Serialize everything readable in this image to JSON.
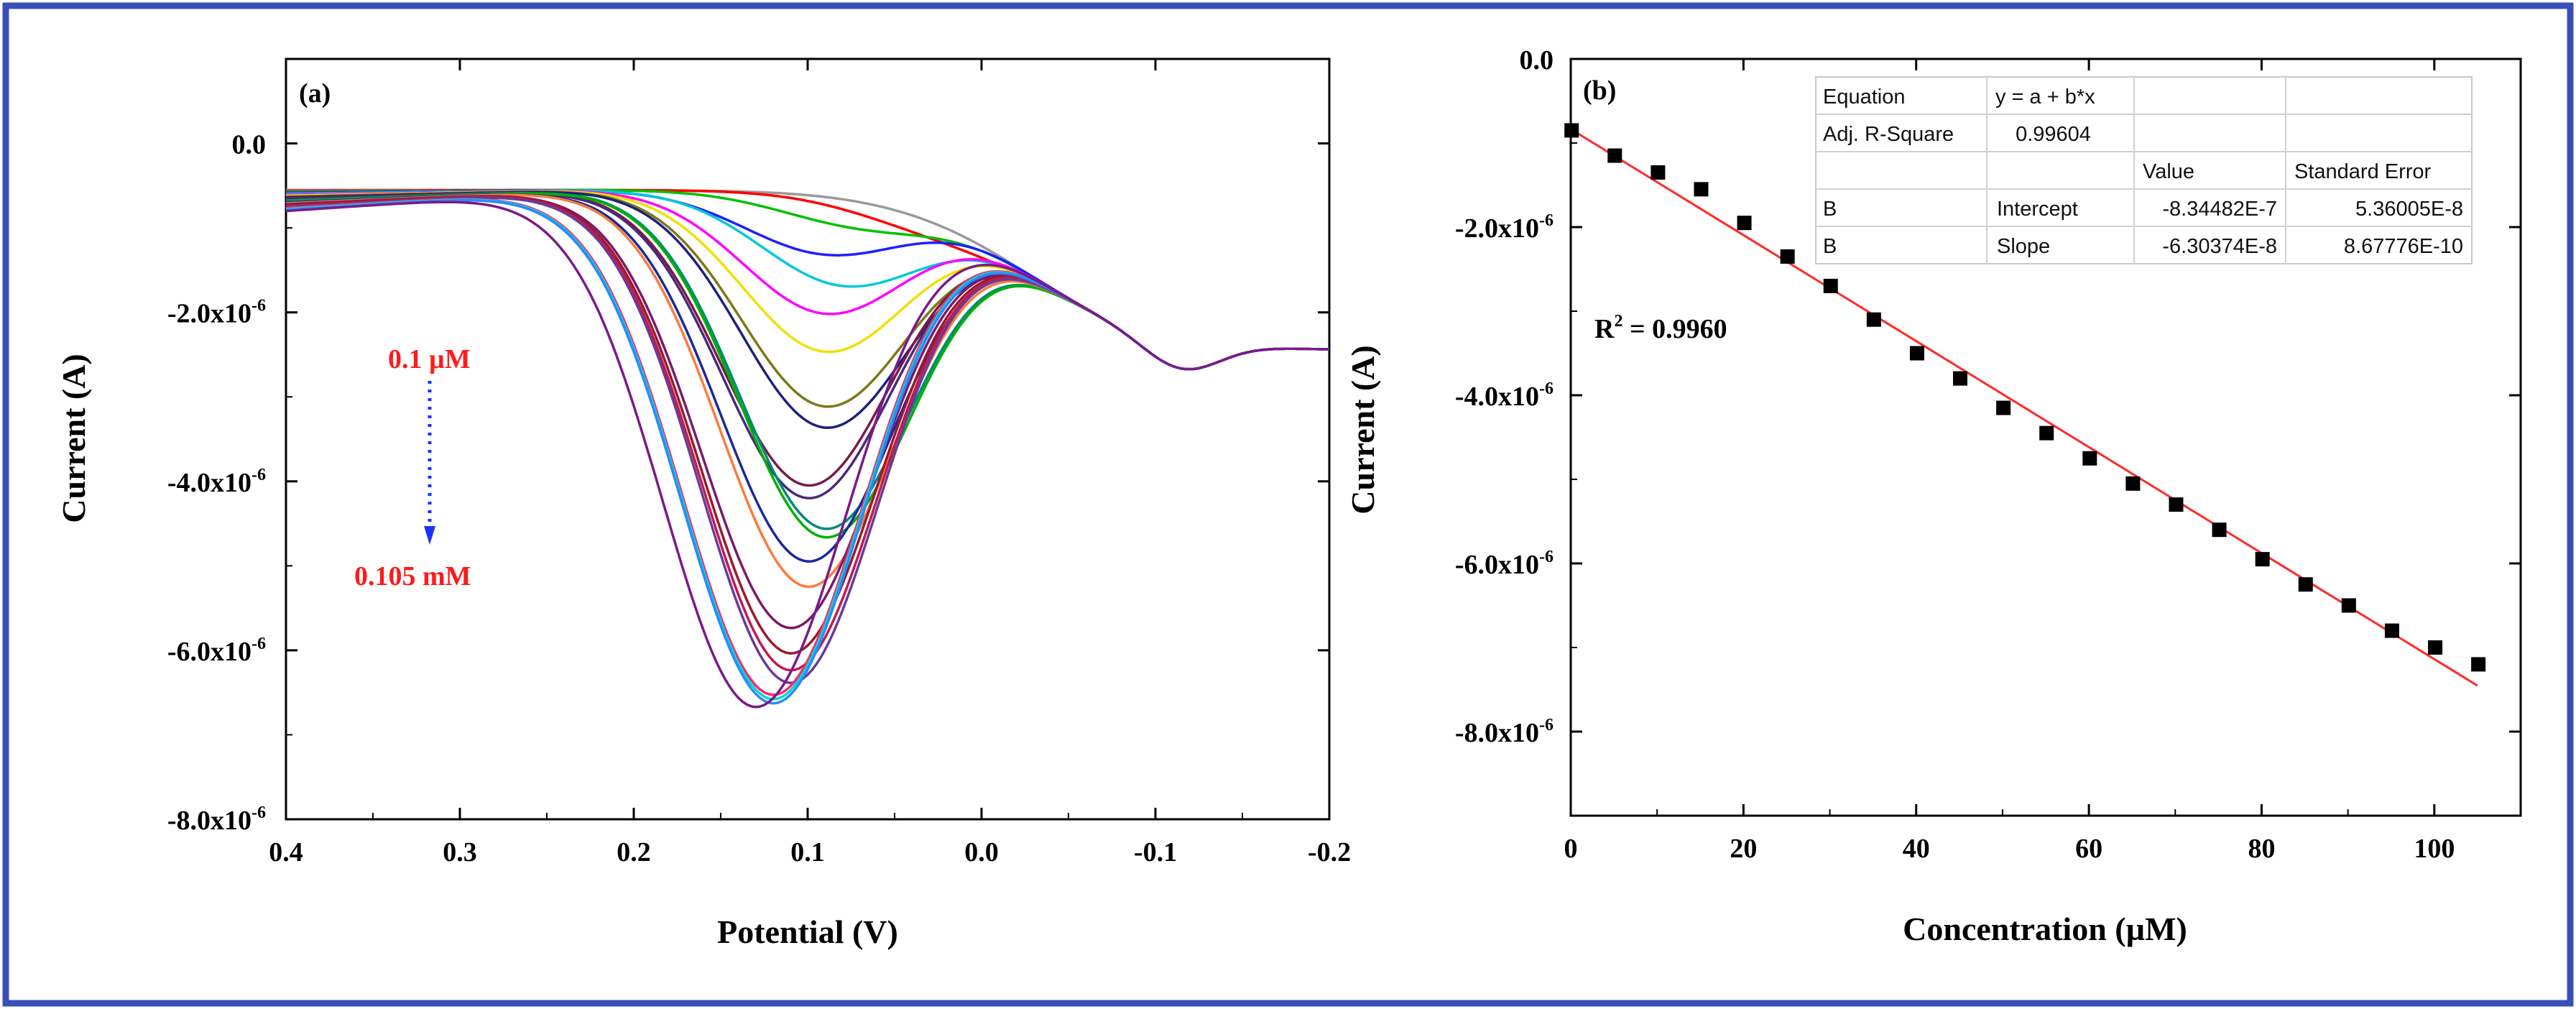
{
  "colors": {
    "border": "#3a4fb8",
    "fit_line": "#ff2a2a",
    "marker": "#000000",
    "arrow": "#1a33ff",
    "annotation": "#ff1a1a"
  },
  "chart_data": [
    {
      "panel": "(a)",
      "type": "line",
      "title": "",
      "xlabel": "Potential (V)",
      "ylabel": "Current (A)",
      "xlim": [
        0.4,
        -0.2
      ],
      "ylim": [
        -8e-06,
        1e-06
      ],
      "x_ticks": [
        "0.4",
        "0.3",
        "0.2",
        "0.1",
        "0.0",
        "-0.1",
        "-0.2"
      ],
      "y_ticks": [
        "0.0",
        "-2.0x10-6",
        "-4.0x10-6",
        "-6.0x10-6",
        "-8.0x10-6"
      ],
      "annotation_start": "0.1 µM",
      "annotation_end": "0.105 mM",
      "series": [
        {
          "color": "#9a9a9a",
          "peak_potential": 0.02,
          "peak_current": -1.05e-06
        },
        {
          "color": "#ff0000",
          "peak_potential": 0.03,
          "peak_current": -1.25e-06
        },
        {
          "color": "#00c000",
          "peak_potential": 0.07,
          "peak_current": -1.35e-06
        },
        {
          "color": "#1f1fff",
          "peak_potential": 0.09,
          "peak_current": -1.7e-06
        },
        {
          "color": "#00c8d8",
          "peak_potential": 0.08,
          "peak_current": -2.05e-06
        },
        {
          "color": "#ff00ff",
          "peak_potential": 0.09,
          "peak_current": -2.4e-06
        },
        {
          "color": "#f0e000",
          "peak_potential": 0.09,
          "peak_current": -2.85e-06
        },
        {
          "color": "#7a7a18",
          "peak_potential": 0.09,
          "peak_current": -3.5e-06
        },
        {
          "color": "#20207a",
          "peak_potential": 0.09,
          "peak_current": -3.75e-06
        },
        {
          "color": "#7a1a4a",
          "peak_potential": 0.1,
          "peak_current": -4.45e-06
        },
        {
          "color": "#4a2a7a",
          "peak_potential": 0.1,
          "peak_current": -4.6e-06
        },
        {
          "color": "#008a7a",
          "peak_potential": 0.09,
          "peak_current": -4.95e-06
        },
        {
          "color": "#00b000",
          "peak_potential": 0.09,
          "peak_current": -5.05e-06
        },
        {
          "color": "#1a2a9a",
          "peak_potential": 0.1,
          "peak_current": -5.35e-06
        },
        {
          "color": "#ff7a3a",
          "peak_potential": 0.1,
          "peak_current": -5.65e-06
        },
        {
          "color": "#7a1a6a",
          "peak_potential": 0.11,
          "peak_current": -6.15e-06
        },
        {
          "color": "#9a1a2a",
          "peak_potential": 0.11,
          "peak_current": -6.45e-06
        },
        {
          "color": "#c01a50",
          "peak_potential": 0.11,
          "peak_current": -6.65e-06
        },
        {
          "color": "#6a3a9a",
          "peak_potential": 0.11,
          "peak_current": -6.8e-06
        },
        {
          "color": "#ff2a6a",
          "peak_potential": 0.12,
          "peak_current": -6.95e-06
        },
        {
          "color": "#00d8d8",
          "peak_potential": 0.12,
          "peak_current": -7e-06
        },
        {
          "color": "#2a8aff",
          "peak_potential": 0.12,
          "peak_current": -7.05e-06
        },
        {
          "color": "#7a1a8a",
          "peak_potential": 0.13,
          "peak_current": -7.1e-06
        }
      ]
    },
    {
      "panel": "(b)",
      "type": "scatter",
      "title": "",
      "xlabel": "Concentration (µM)",
      "ylabel": "Current (A)",
      "xlim": [
        0,
        110
      ],
      "ylim": [
        -9e-06,
        0.0
      ],
      "x_ticks": [
        "0",
        "20",
        "40",
        "60",
        "80",
        "100"
      ],
      "y_ticks": [
        "0.0",
        "-2.0x10-6",
        "-4.0x10-6",
        "-6.0x10-6",
        "-8.0x10-6"
      ],
      "x": [
        0.1,
        5.1,
        10.1,
        15.1,
        20.1,
        25.1,
        30.1,
        35.1,
        40.1,
        45.1,
        50.1,
        55.1,
        60.1,
        65.1,
        70.1,
        75.1,
        80.1,
        85.1,
        90.1,
        95.1,
        100.1,
        105.1
      ],
      "y": [
        -8.5e-07,
        -1.15e-06,
        -1.35e-06,
        -1.55e-06,
        -1.95e-06,
        -2.35e-06,
        -2.7e-06,
        -3.1e-06,
        -3.5e-06,
        -3.8e-06,
        -4.15e-06,
        -4.45e-06,
        -4.75e-06,
        -5.05e-06,
        -5.3e-06,
        -5.6e-06,
        -5.95e-06,
        -6.25e-06,
        -6.5e-06,
        -6.8e-06,
        -7e-06,
        -7.2e-06
      ],
      "fit": {
        "intercept": -8.34482e-07,
        "slope": -6.30374e-08,
        "x_range": [
          0,
          105
        ]
      },
      "r2_label": "R",
      "r2_value": " = 0.9960",
      "table": {
        "rows": [
          [
            "Equation",
            "y = a + b*x",
            "",
            ""
          ],
          [
            "Adj. R-Square",
            "0.99604",
            "",
            ""
          ],
          [
            "",
            "",
            "Value",
            "Standard Error"
          ],
          [
            "B",
            "Intercept",
            "-8.34482E-7",
            "5.36005E-8"
          ],
          [
            "B",
            "Slope",
            "-6.30374E-8",
            "8.67776E-10"
          ]
        ]
      }
    }
  ]
}
